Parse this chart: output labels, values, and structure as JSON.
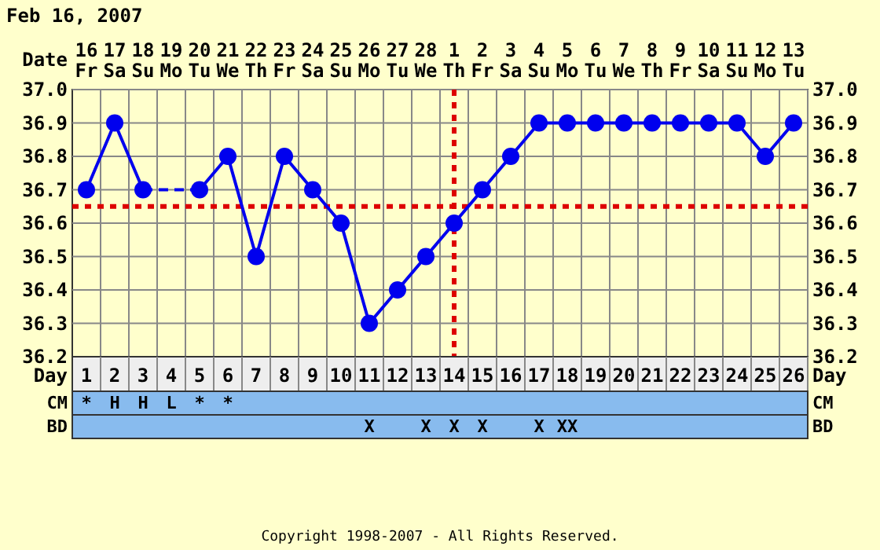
{
  "chart_data": [
    {
      "type": "line",
      "title": "Feb 16, 2007",
      "xlabel": "Day",
      "x2label": "Date",
      "x": [
        1,
        2,
        3,
        4,
        5,
        6,
        7,
        8,
        9,
        10,
        11,
        12,
        13,
        14,
        15,
        16,
        17,
        18,
        19,
        20,
        21,
        22,
        23,
        24,
        25,
        26
      ],
      "series": [
        {
          "color": "#0000ee",
          "values": [
            36.7,
            36.9,
            36.7,
            null,
            36.7,
            36.8,
            36.5,
            36.8,
            36.7,
            36.6,
            36.3,
            36.4,
            36.5,
            36.6,
            36.7,
            36.8,
            36.9,
            36.9,
            36.9,
            36.9,
            36.9,
            36.9,
            36.9,
            36.9,
            36.8,
            36.9
          ]
        }
      ],
      "xlim": [
        0.5,
        26.5
      ],
      "xticks": [
        1,
        2,
        3,
        4,
        5,
        6,
        7,
        8,
        9,
        10,
        11,
        12,
        13,
        14,
        15,
        16,
        17,
        18,
        19,
        20,
        21,
        22,
        23,
        24,
        25,
        26
      ],
      "x2lim": [
        "2007-02-15T12:00",
        "2007-03-13T12:00"
      ],
      "x2ticks": [
        {
          "value": "2007-02-16",
          "label": "16 Fr"
        },
        {
          "value": "2007-02-17",
          "label": "17 Sa"
        },
        {
          "value": "2007-02-18",
          "label": "18 Su"
        },
        {
          "value": "2007-02-19",
          "label": "19 Mo"
        },
        {
          "value": "2007-02-20",
          "label": "20 Tu"
        },
        {
          "value": "2007-02-21",
          "label": "21 We"
        },
        {
          "value": "2007-02-22",
          "label": "22 Th"
        },
        {
          "value": "2007-02-23",
          "label": "23 Fr"
        },
        {
          "value": "2007-02-24",
          "label": "24 Sa"
        },
        {
          "value": "2007-02-25",
          "label": "25 Su"
        },
        {
          "value": "2007-02-26",
          "label": "26 Mo"
        },
        {
          "value": "2007-02-27",
          "label": "27 Tu"
        },
        {
          "value": "2007-02-28",
          "label": "28 We"
        },
        {
          "value": "2007-03-01",
          "label": "1 Th"
        },
        {
          "value": "2007-03-02",
          "label": "2 Fr"
        },
        {
          "value": "2007-03-03",
          "label": "3 Sa"
        },
        {
          "value": "2007-03-04",
          "label": "4 Su"
        },
        {
          "value": "2007-03-05",
          "label": "5 Mo"
        },
        {
          "value": "2007-03-06",
          "label": "6 Tu"
        },
        {
          "value": "2007-03-07",
          "label": "7 We"
        },
        {
          "value": "2007-03-08",
          "label": "8 Th"
        },
        {
          "value": "2007-03-09",
          "label": "9 Fr"
        },
        {
          "value": "2007-03-10",
          "label": "10 Sa"
        },
        {
          "value": "2007-03-11",
          "label": "11 Su"
        },
        {
          "value": "2007-03-12",
          "label": "12 Mo"
        },
        {
          "value": "2007-03-13",
          "label": "13 Tu"
        }
      ],
      "ylim": [
        36.2,
        37.0
      ],
      "yticks": [
        {
          "value": 36.2,
          "label": "36.2"
        },
        {
          "value": 36.3,
          "label": "36.3"
        },
        {
          "value": 36.4,
          "label": "36.4"
        },
        {
          "value": 36.5,
          "label": "36.5"
        },
        {
          "value": 36.6,
          "label": "36.6"
        },
        {
          "value": 36.7,
          "label": "36.7"
        },
        {
          "value": 36.8,
          "label": "36.8"
        },
        {
          "value": 36.9,
          "label": "36.9"
        },
        {
          "value": 37.0,
          "label": "37.0"
        }
      ],
      "y2lim": [
        36.2,
        37.0
      ],
      "y2ticks": [
        {
          "value": 36.2,
          "label": "36.2"
        },
        {
          "value": 36.3,
          "label": "36.3"
        },
        {
          "value": 36.4,
          "label": "36.4"
        },
        {
          "value": 36.5,
          "label": "36.5"
        },
        {
          "value": 36.6,
          "label": "36.6"
        },
        {
          "value": 36.7,
          "label": "36.7"
        },
        {
          "value": 36.8,
          "label": "36.8"
        },
        {
          "value": 36.9,
          "label": "36.9"
        },
        {
          "value": 37.0,
          "label": "37.0"
        }
      ],
      "grid": true,
      "marker": "circle",
      "line_style": "solid",
      "ref_lines": [
        {
          "axis": "y",
          "value": 36.65,
          "color": "#dd0000",
          "line_style": "dotted"
        },
        {
          "axis": "x",
          "value": 14,
          "color": "#dd0000",
          "line_style": "dotted"
        }
      ],
      "annotations": [
        "Copyright 1998-2007 - All Rights Reserved."
      ]
    },
    {
      "type": "heatmap",
      "categories": [
        null,
        null,
        null,
        null,
        null,
        null,
        null,
        null,
        null,
        null,
        null,
        null,
        null,
        null,
        null,
        null,
        null,
        null,
        null,
        null,
        null,
        null,
        null,
        null,
        null,
        null
      ],
      "y_categories": [
        "CM",
        "BD"
      ],
      "y2_categories": [
        "CM",
        "BD"
      ],
      "cells": [
        [
          null,
          null,
          null,
          null,
          null,
          null,
          null,
          null,
          null,
          null,
          null,
          null,
          null,
          null,
          null,
          null,
          null,
          null,
          null,
          null,
          null,
          null,
          null,
          null,
          null,
          null
        ],
        [
          null,
          null,
          null,
          null,
          null,
          null,
          null,
          null,
          null,
          null,
          null,
          null,
          null,
          null,
          null,
          null,
          null,
          null,
          null,
          null,
          null,
          null,
          null,
          null,
          null,
          null
        ]
      ],
      "cell_labels": [
        [
          "*",
          "H",
          "H",
          "L",
          "*",
          "*",
          null,
          null,
          null,
          null,
          null,
          null,
          null,
          null,
          null,
          null,
          null,
          null,
          null,
          null,
          null,
          null,
          null,
          null,
          null,
          null
        ],
        [
          null,
          null,
          null,
          null,
          null,
          null,
          null,
          null,
          null,
          null,
          "X",
          null,
          "X",
          "X",
          "X",
          null,
          "X",
          "XX",
          null,
          null,
          null,
          null,
          null,
          null,
          null,
          null
        ]
      ]
    }
  ]
}
